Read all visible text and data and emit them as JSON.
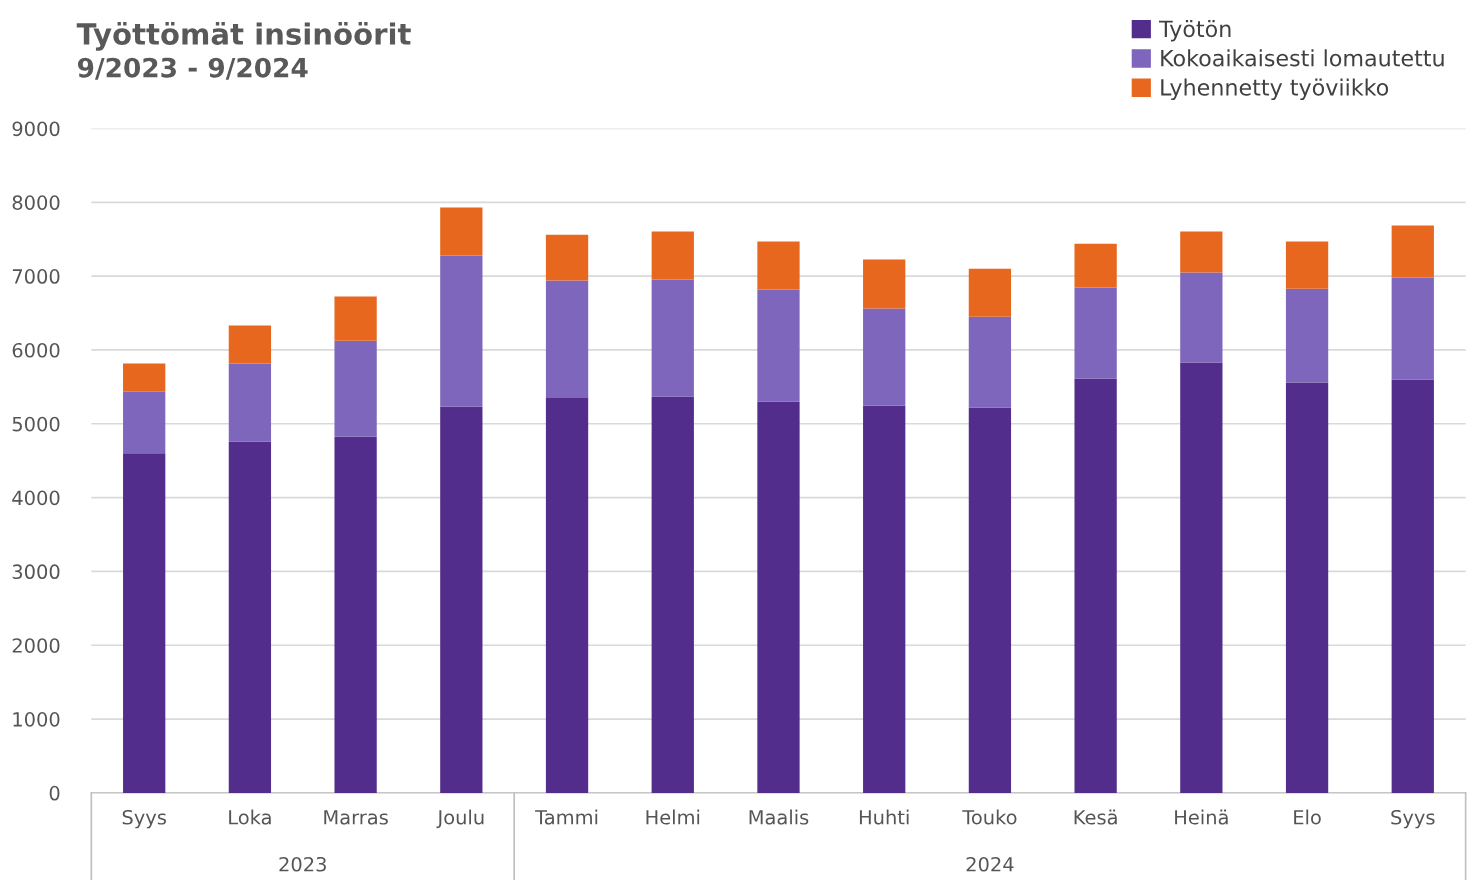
{
  "chart_data": {
    "type": "bar",
    "stacked": true,
    "title": "Työttömät insinöörit",
    "subtitle": "9/2023 - 9/2024",
    "categories": [
      "Syys",
      "Loka",
      "Marras",
      "Joulu",
      "Tammi",
      "Helmi",
      "Maalis",
      "Huhti",
      "Touko",
      "Kesä",
      "Heinä",
      "Elo",
      "Syys"
    ],
    "series": [
      {
        "name": "Työtön",
        "color": "#522d8c",
        "values": [
          4600,
          4760,
          4825,
          5230,
          5350,
          5370,
          5300,
          5245,
          5220,
          5610,
          5830,
          5560,
          5600
        ]
      },
      {
        "name": "Kokoaikaisesti lomautettu",
        "color": "#7e66bc",
        "values": [
          835,
          1055,
          1300,
          2050,
          1590,
          1585,
          1520,
          1315,
          1230,
          1235,
          1220,
          1270,
          1380
        ]
      },
      {
        "name": "Lyhennetty työviikko",
        "color": "#e8671f",
        "values": [
          380,
          515,
          600,
          650,
          620,
          650,
          650,
          665,
          650,
          595,
          555,
          640,
          705
        ]
      }
    ],
    "annotations": [
      "2023",
      "2024"
    ],
    "ylim": [
      0,
      9000
    ],
    "yticks": [
      0,
      1000,
      2000,
      3000,
      4000,
      5000,
      6000,
      7000,
      8000,
      9000
    ],
    "grid": "y",
    "legend": "top right"
  }
}
